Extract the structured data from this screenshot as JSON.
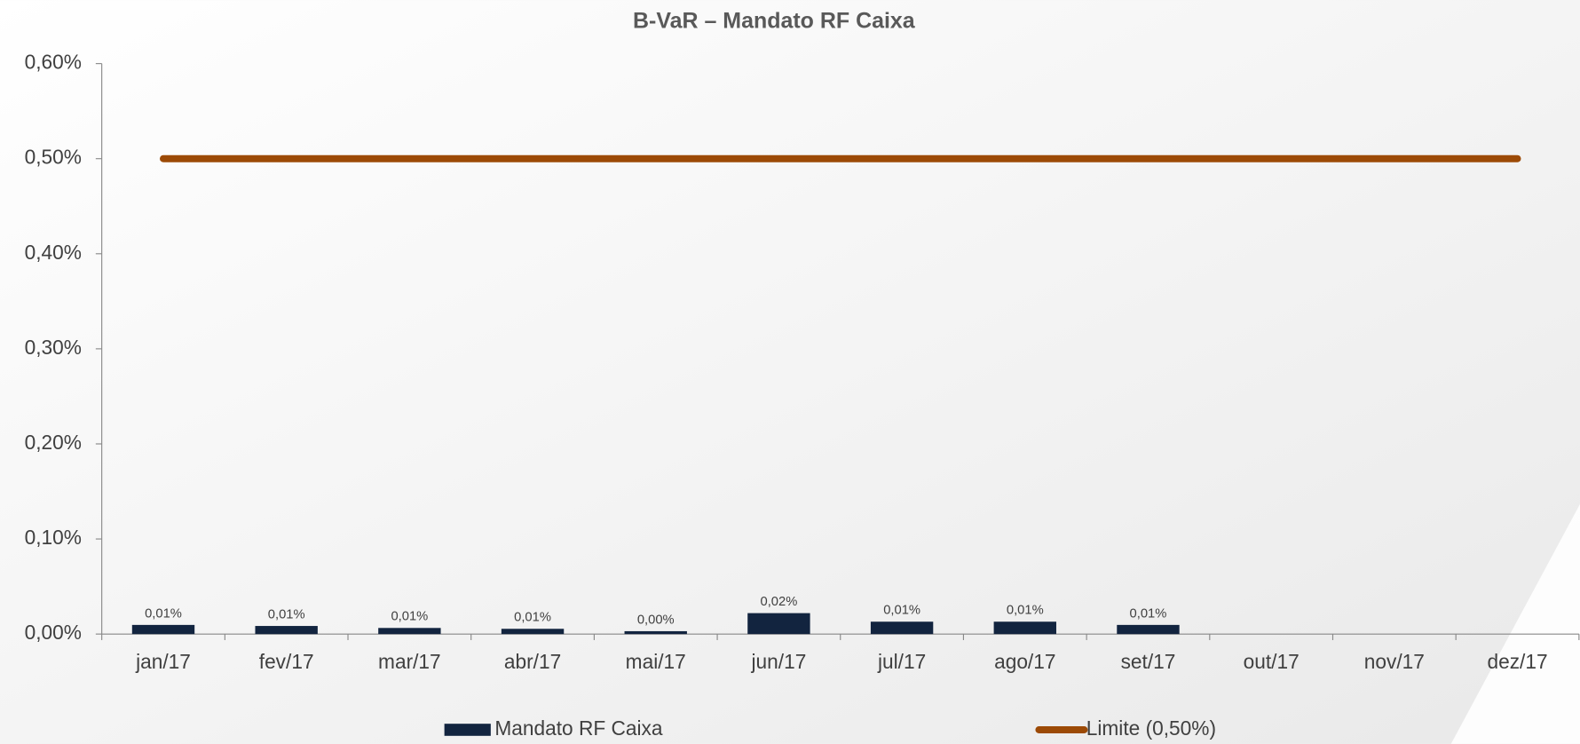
{
  "chart_data": {
    "type": "bar_line",
    "title": "B-VaR – Mandato RF Caixa",
    "categories": [
      "jan/17",
      "fev/17",
      "mar/17",
      "abr/17",
      "mai/17",
      "jun/17",
      "jul/17",
      "ago/17",
      "set/17",
      "out/17",
      "nov/17",
      "dez/17"
    ],
    "series": [
      {
        "name": "Mandato RF Caixa",
        "type": "bar",
        "color": "#12243f",
        "values": [
          0.0096,
          0.0085,
          0.0064,
          0.0055,
          0.003,
          0.022,
          0.013,
          0.013,
          0.0096,
          null,
          null,
          null
        ],
        "value_labels": [
          "0,01%",
          "0,01%",
          "0,01%",
          "0,01%",
          "0,00%",
          "0,02%",
          "0,01%",
          "0,01%",
          "0,01%",
          null,
          null,
          null
        ]
      },
      {
        "name": "Limite (0,50%)",
        "type": "line",
        "color": "#9c4a06",
        "values": [
          0.5,
          0.5,
          0.5,
          0.5,
          0.5,
          0.5,
          0.5,
          0.5,
          0.5,
          0.5,
          0.5,
          0.5
        ]
      }
    ],
    "ylim": [
      0,
      0.6
    ],
    "yticks": [
      {
        "value": 0,
        "label": "0,00%"
      },
      {
        "value": 0.1,
        "label": "0,10%"
      },
      {
        "value": 0.2,
        "label": "0,20%"
      },
      {
        "value": 0.3,
        "label": "0,30%"
      },
      {
        "value": 0.4,
        "label": "0,40%"
      },
      {
        "value": 0.5,
        "label": "0,50%"
      },
      {
        "value": 0.6,
        "label": "0,60%"
      }
    ],
    "grid": false,
    "legend": "bottom"
  }
}
